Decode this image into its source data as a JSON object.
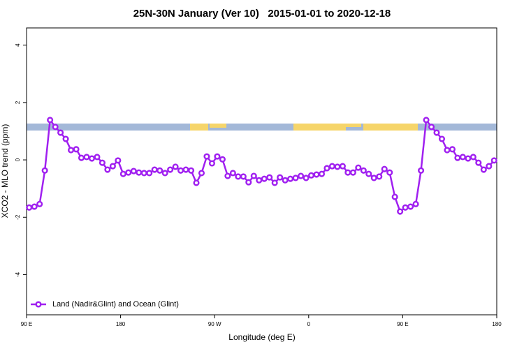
{
  "chart_data": {
    "type": "line",
    "title": "25N-30N January (Ver 10)   2015-01-01 to 2020-12-18",
    "xlabel": "Longitude (deg E)",
    "ylabel": "XCO2 - MLO trend (ppm)",
    "xlim": [
      90,
      540
    ],
    "ylim": [
      -5.4,
      4.6
    ],
    "xticks": [
      {
        "value": 90,
        "label": "90 E"
      },
      180,
      {
        "value": 270,
        "label": "90 W"
      },
      {
        "value": 360,
        "label": "0"
      },
      {
        "value": 450,
        "label": "90 E"
      },
      {
        "value": 540,
        "label": "180"
      }
    ],
    "yticks": [
      -4,
      -2,
      0,
      2,
      4
    ],
    "legend": "bottomleft",
    "x": [
      92.5,
      97.5,
      102.5,
      107.5,
      112.5,
      117.5,
      122.5,
      127.5,
      132.5,
      137.5,
      142.5,
      147.5,
      152.5,
      157.5,
      162.5,
      167.5,
      172.5,
      177.5,
      182.5,
      187.5,
      192.5,
      197.5,
      202.5,
      207.5,
      212.5,
      217.5,
      222.5,
      227.5,
      232.5,
      237.5,
      242.5,
      247.5,
      252.5,
      257.5,
      262.5,
      267.5,
      272.5,
      277.5,
      282.5,
      287.5,
      292.5,
      297.5,
      302.5,
      307.5,
      312.5,
      317.5,
      322.5,
      327.5,
      332.5,
      337.5,
      342.5,
      347.5,
      352.5,
      357.5,
      362.5,
      367.5,
      372.5,
      377.5,
      382.5,
      387.5,
      392.5,
      397.5,
      402.5,
      407.5,
      412.5,
      417.5,
      422.5,
      427.5,
      432.5,
      437.5,
      442.5,
      447.5,
      452.5,
      457.5,
      462.5,
      467.5,
      472.5,
      477.5,
      482.5,
      487.5,
      492.5,
      497.5,
      502.5,
      507.5,
      512.5,
      517.5,
      522.5,
      527.5,
      532.5,
      537.5
    ],
    "series": [
      {
        "name": "Land (Nadir&Glint) and Ocean (Glint)",
        "color": "#a020f0",
        "values": [
          -1.66,
          -1.63,
          -1.54,
          -0.37,
          1.39,
          1.15,
          0.95,
          0.73,
          0.34,
          0.37,
          0.07,
          0.1,
          0.05,
          0.1,
          -0.1,
          -0.34,
          -0.22,
          -0.02,
          -0.49,
          -0.44,
          -0.39,
          -0.44,
          -0.46,
          -0.46,
          -0.34,
          -0.37,
          -0.46,
          -0.34,
          -0.24,
          -0.37,
          -0.34,
          -0.37,
          -0.8,
          -0.46,
          0.12,
          -0.12,
          0.12,
          0.02,
          -0.56,
          -0.46,
          -0.58,
          -0.58,
          -0.78,
          -0.56,
          -0.71,
          -0.66,
          -0.61,
          -0.8,
          -0.61,
          -0.71,
          -0.66,
          -0.63,
          -0.56,
          -0.63,
          -0.54,
          -0.51,
          -0.49,
          -0.29,
          -0.22,
          -0.24,
          -0.22,
          -0.44,
          -0.44,
          -0.27,
          -0.37,
          -0.49,
          -0.63,
          -0.58,
          -0.32,
          -0.44,
          -1.29,
          -1.8,
          -1.66,
          -1.63,
          -1.54,
          -0.37,
          1.39,
          1.15,
          0.95,
          0.73,
          0.34,
          0.37,
          0.07,
          0.1,
          0.05,
          0.1,
          -0.1,
          -0.34,
          -0.22,
          -0.02
        ]
      }
    ]
  }
}
